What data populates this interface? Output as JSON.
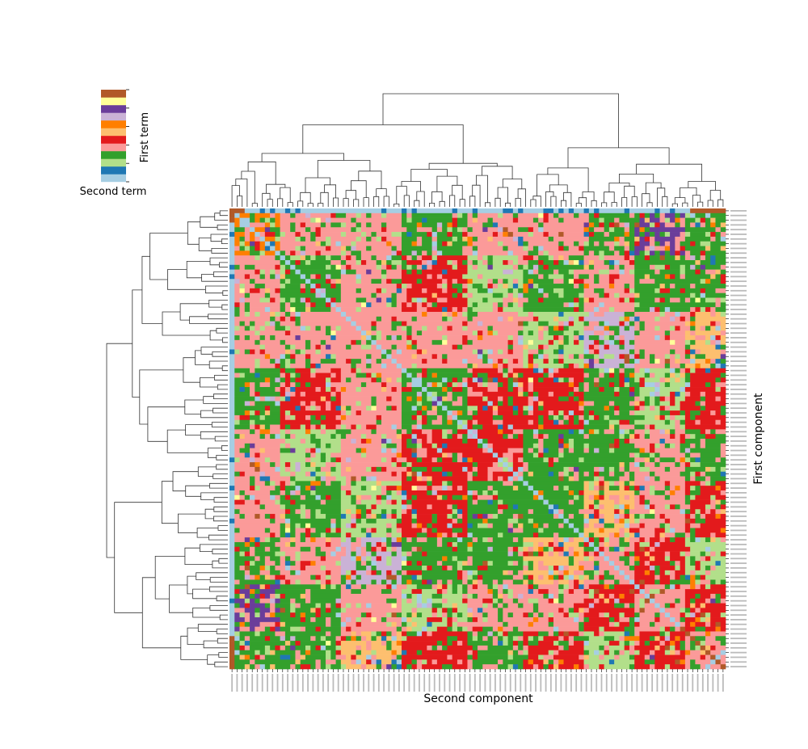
{
  "chart_data": {
    "type": "heatmap",
    "title": "",
    "xlabel": "Second component",
    "ylabel": "First component",
    "colorbar": {
      "xlabel": "Second term",
      "ylabel": "First term",
      "levels": 11,
      "colors": [
        "#a6cee3",
        "#1f78b4",
        "#b2df8a",
        "#33a02c",
        "#fb9a99",
        "#e31a1c",
        "#fdbf6f",
        "#ff7f00",
        "#cab2d6",
        "#6a3d9a",
        "#ffff99",
        "#b15928"
      ]
    },
    "n_rows": 98,
    "n_cols": 98,
    "row_dendrogram": "left",
    "col_dendrogram": "top",
    "tick_labels": "unreadable",
    "grid": false
  }
}
